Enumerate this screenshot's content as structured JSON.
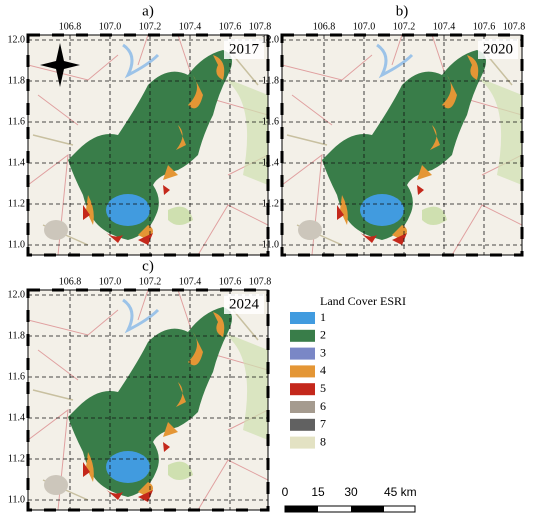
{
  "panels": [
    {
      "label": "a)",
      "year": "2017"
    },
    {
      "label": "b)",
      "year": "2020"
    },
    {
      "label": "c)",
      "year": "2024"
    }
  ],
  "lon_ticks": [
    "106.8",
    "107.0",
    "107.2",
    "107.4",
    "107.6",
    "107.8"
  ],
  "lat_ticks": [
    "12.0",
    "11.8",
    "11.6",
    "11.4",
    "11.2",
    "11.0"
  ],
  "legend": {
    "title": "Land Cover ESRI",
    "items": [
      {
        "label": "1",
        "color": "#419bdf"
      },
      {
        "label": "2",
        "color": "#397d49"
      },
      {
        "label": "3",
        "color": "#7a87c6"
      },
      {
        "label": "4",
        "color": "#e49635"
      },
      {
        "label": "5",
        "color": "#c4281b"
      },
      {
        "label": "6",
        "color": "#a59b8f"
      },
      {
        "label": "7",
        "color": "#616161"
      },
      {
        "label": "8",
        "color": "#e3e2c3"
      }
    ]
  },
  "scale_bar": [
    "0",
    "15",
    "30",
    "45 km"
  ]
}
